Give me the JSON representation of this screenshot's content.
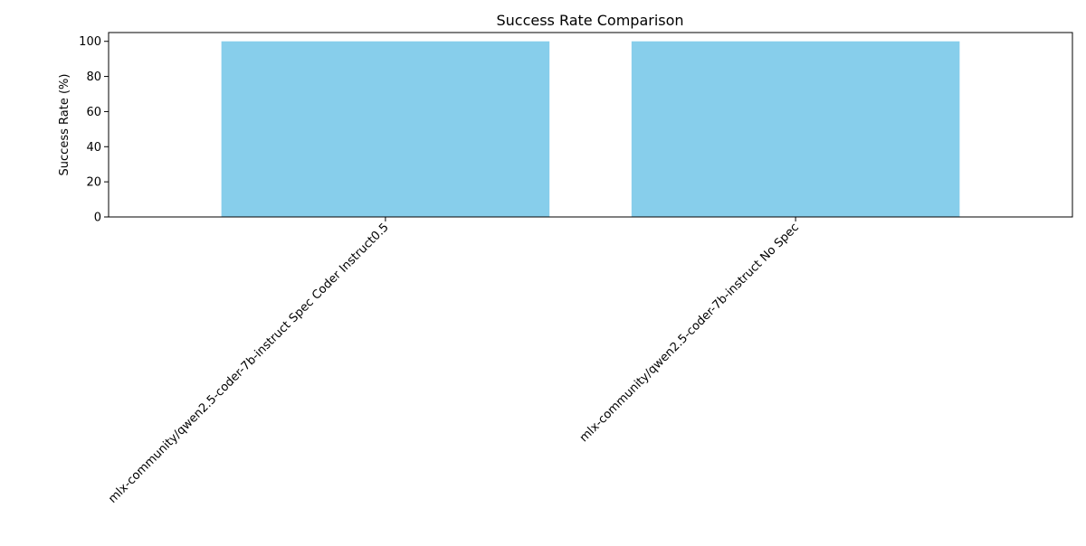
{
  "chart_data": {
    "type": "bar",
    "title": "Success Rate Comparison",
    "xlabel": "",
    "ylabel": "Success Rate (%)",
    "categories": [
      "mlx-community/qwen2.5-coder-7b-instruct Spec Coder Instruct0.5",
      "mlx-community/qwen2.5-coder-7b-instruct No Spec"
    ],
    "values": [
      100,
      100
    ],
    "ylim": [
      0,
      105
    ],
    "yticks": [
      0,
      20,
      40,
      60,
      80,
      100
    ],
    "grid": false,
    "legend": "none",
    "colors": {
      "bar": "#87CEEB",
      "axis": "#000000"
    }
  }
}
